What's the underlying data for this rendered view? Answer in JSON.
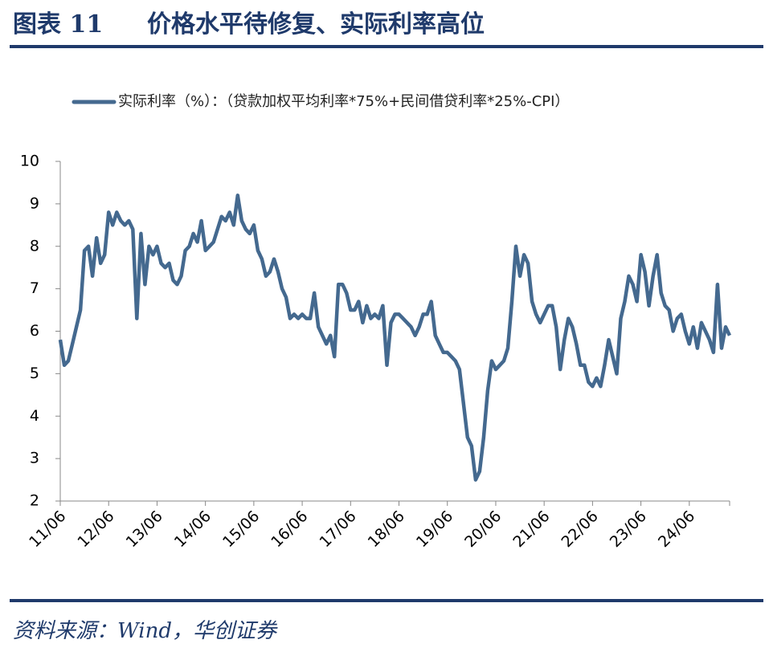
{
  "header": {
    "label": "图表 11",
    "title": "价格水平待修复、实际利率高位"
  },
  "chart_data": {
    "type": "line",
    "series": [
      {
        "name": "实际利率（%）：（贷款加权平均利率*75%+民间借贷利率*25%-CPI）",
        "color": "#44698f",
        "values": [
          5.8,
          5.2,
          5.3,
          5.7,
          6.1,
          6.5,
          7.9,
          8.0,
          7.3,
          8.2,
          7.6,
          7.8,
          8.8,
          8.5,
          8.8,
          8.6,
          8.5,
          8.6,
          8.4,
          6.3,
          8.3,
          7.1,
          8.0,
          7.8,
          8.0,
          7.6,
          7.5,
          7.6,
          7.2,
          7.1,
          7.3,
          7.9,
          8.0,
          8.3,
          8.1,
          8.6,
          7.9,
          8.0,
          8.1,
          8.4,
          8.7,
          8.6,
          8.8,
          8.5,
          9.2,
          8.6,
          8.4,
          8.3,
          8.5,
          7.9,
          7.7,
          7.3,
          7.4,
          7.7,
          7.4,
          7.0,
          6.8,
          6.3,
          6.4,
          6.3,
          6.4,
          6.3,
          6.3,
          6.9,
          6.1,
          5.9,
          5.7,
          5.9,
          5.4,
          7.1,
          7.1,
          6.9,
          6.5,
          6.5,
          6.7,
          6.2,
          6.6,
          6.3,
          6.4,
          6.3,
          6.6,
          5.2,
          6.2,
          6.4,
          6.4,
          6.3,
          6.2,
          6.1,
          5.9,
          6.1,
          6.4,
          6.4,
          6.7,
          5.9,
          5.7,
          5.5,
          5.5,
          5.4,
          5.3,
          5.1,
          4.3,
          3.5,
          3.3,
          2.5,
          2.7,
          3.5,
          4.6,
          5.3,
          5.1,
          5.2,
          5.3,
          5.6,
          6.7,
          8.0,
          7.3,
          7.8,
          7.6,
          6.7,
          6.4,
          6.2,
          6.4,
          6.6,
          6.6,
          6.1,
          5.1,
          5.8,
          6.3,
          6.1,
          5.7,
          5.2,
          5.2,
          4.8,
          4.7,
          4.9,
          4.7,
          5.2,
          5.8,
          5.4,
          5.0,
          6.3,
          6.7,
          7.3,
          7.1,
          6.7,
          7.8,
          7.4,
          6.6,
          7.3,
          7.8,
          6.9,
          6.6,
          6.5,
          6.0,
          6.3,
          6.4,
          6.0,
          5.7,
          6.1,
          5.6,
          6.2,
          6.0,
          5.8,
          5.5,
          7.1,
          5.6,
          6.1,
          5.9
        ]
      }
    ],
    "categories": [
      "11/06",
      null,
      null,
      null,
      null,
      null,
      null,
      null,
      null,
      null,
      null,
      null,
      "12/06",
      null,
      null,
      null,
      null,
      null,
      null,
      null,
      null,
      null,
      null,
      null,
      "13/06",
      null,
      null,
      null,
      null,
      null,
      null,
      null,
      null,
      null,
      null,
      null,
      "14/06",
      null,
      null,
      null,
      null,
      null,
      null,
      null,
      null,
      null,
      null,
      null,
      "15/06",
      null,
      null,
      null,
      null,
      null,
      null,
      null,
      null,
      null,
      null,
      null,
      "16/06",
      null,
      null,
      null,
      null,
      null,
      null,
      null,
      null,
      null,
      null,
      null,
      "17/06",
      null,
      null,
      null,
      null,
      null,
      null,
      null,
      null,
      null,
      null,
      null,
      "18/06",
      null,
      null,
      null,
      null,
      null,
      null,
      null,
      null,
      null,
      null,
      null,
      "19/06",
      null,
      null,
      null,
      null,
      null,
      null,
      null,
      null,
      null,
      null,
      null,
      "20/06",
      null,
      null,
      null,
      null,
      null,
      null,
      null,
      null,
      null,
      null,
      null,
      "21/06",
      null,
      null,
      null,
      null,
      null,
      null,
      null,
      null,
      null,
      null,
      null,
      "22/06",
      null,
      null,
      null,
      null,
      null,
      null,
      null,
      null,
      null,
      null,
      null,
      "23/06",
      null,
      null,
      null,
      null,
      null,
      null,
      null,
      null,
      null,
      null,
      null,
      "24/06",
      null,
      null,
      null,
      null,
      null,
      null,
      null,
      null,
      null,
      null
    ],
    "ylim": [
      2,
      10
    ],
    "yticks": [
      2,
      3,
      4,
      5,
      6,
      7,
      8,
      9,
      10
    ],
    "legend": "top"
  },
  "source": "资料来源：Wind，华创证券"
}
